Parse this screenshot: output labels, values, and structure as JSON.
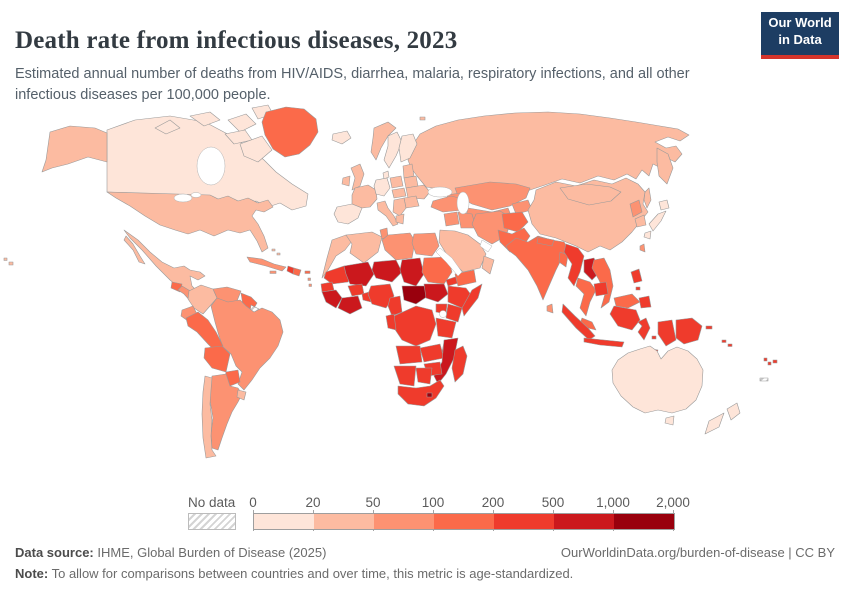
{
  "header": {
    "title": "Death rate from infectious diseases, 2023",
    "subtitle": "Estimated annual number of deaths from HIV/AIDS, diarrhea, malaria, respiratory infections, and all other infectious diseases per 100,000 people.",
    "logo": {
      "line1": "Our World",
      "line2": "in Data",
      "bg_color": "#1d3d63",
      "accent_color": "#d5342b"
    }
  },
  "legend": {
    "no_data_label": "No data",
    "tick_labels": [
      "0",
      "20",
      "50",
      "100",
      "200",
      "500",
      "1,000",
      "2,000"
    ]
  },
  "footer": {
    "source_label": "Data source:",
    "source_text": " IHME, Global Burden of Disease (2025)",
    "link_text": "OurWorldinData.org/burden-of-disease | CC BY",
    "note_label": "Note:",
    "note_text": " To allow for comparisons between countries and over time, this metric is age-standardized."
  },
  "chart_data": {
    "type": "choropleth",
    "title": "Death rate from infectious diseases, 2023",
    "unit": "deaths per 100,000 people (age-standardized)",
    "year": 2023,
    "legend_position": "bottom",
    "bin_edges": [
      0,
      20,
      50,
      100,
      200,
      500,
      1000,
      2000
    ],
    "bin_labels": [
      "0-20",
      "20-50",
      "50-100",
      "100-200",
      "200-500",
      "500-1,000",
      "1,000-2,000"
    ],
    "bin_colors": [
      "#fee5d9",
      "#fcbba1",
      "#fc9272",
      "#fb6a4a",
      "#ef3b2c",
      "#cb181d",
      "#99000d"
    ],
    "no_data": {
      "label": "No data",
      "fill": "hatched-gray"
    },
    "regions": {
      "canada": 0,
      "arctic_islands": 0,
      "greenland": 3,
      "alaska": 1,
      "usa": 1,
      "hawaii": 1,
      "mexico": 1,
      "bahamas": 1,
      "cuba": 2,
      "jamaica": 2,
      "haiti": 4,
      "dominican_republic": 3,
      "puerto_rico": 3,
      "lesser_antilles": 2,
      "guatemala": 3,
      "central_america": 2,
      "colombia": 1,
      "venezuela": 2,
      "guyanas": 3,
      "french_guiana": null,
      "ecuador": 2,
      "peru": 3,
      "brazil": 2,
      "bolivia": 3,
      "paraguay": 3,
      "chile": 1,
      "argentina": 2,
      "uruguay": 1,
      "iceland": 0,
      "norway": 1,
      "svalbard": 1,
      "sweden": 0,
      "finland": 0,
      "denmark": 0,
      "uk": 1,
      "ireland": 1,
      "france": 1,
      "germany": 0,
      "iberia": 0,
      "italy": 1,
      "poland": 1,
      "central_europe": 1,
      "baltics": 1,
      "belarus": 1,
      "ukraine": 1,
      "romania_bulgaria": 1,
      "balkans": 1,
      "greece": 1,
      "russia": 1,
      "kazakhstan": 2,
      "uzbekistan_turkmenistan": 2,
      "kyrgyzstan_tajikistan": 2,
      "caucasus": 2,
      "turkey": 2,
      "syria_jordan": 2,
      "iraq": 2,
      "iran": 2,
      "saudi_arabia": 1,
      "yemen": 3,
      "oman": 1,
      "afghanistan": 3,
      "pakistan": 3,
      "india": 3,
      "nepal": 3,
      "bangladesh": 3,
      "sri_lanka": 2,
      "china": 1,
      "mongolia": 1,
      "north_korea": 2,
      "south_korea": 1,
      "japan": 0,
      "taiwan": 2,
      "myanmar": 4,
      "laos": 5,
      "thailand": 3,
      "vietnam": 3,
      "cambodia": 4,
      "malaysia": 3,
      "indonesia": 4,
      "philippines": 4,
      "papua_new_guinea": 4,
      "timor": 4,
      "morocco": 1,
      "algeria": 1,
      "tunisia": 2,
      "libya": 2,
      "egypt": 2,
      "mauritania": 4,
      "senegal": 4,
      "mali": 5,
      "niger": 5,
      "chad": 5,
      "sudan": 3,
      "south_sudan": 5,
      "eritrea": 4,
      "ethiopia": 4,
      "somalia": 4,
      "guinea": 5,
      "cote_divoire_ghana": 5,
      "burkina_faso": 4,
      "togo_benin": 4,
      "nigeria": 4,
      "cameroon": 4,
      "central_african_republic": 6,
      "drc": 4,
      "gabon_congo": 4,
      "uganda": 4,
      "kenya": 4,
      "tanzania": 4,
      "angola": 4,
      "zambia": 4,
      "malawi": 4,
      "mozambique": 5,
      "zimbabwe": 4,
      "namibia": 4,
      "botswana": 4,
      "south_africa": 4,
      "lesotho": 6,
      "madagascar": 4,
      "australia": 0,
      "tasmania": 0,
      "new_zealand": 0,
      "solomon_islands": 4,
      "vanuatu": 4,
      "fiji": 4,
      "new_caledonia": null
    }
  }
}
